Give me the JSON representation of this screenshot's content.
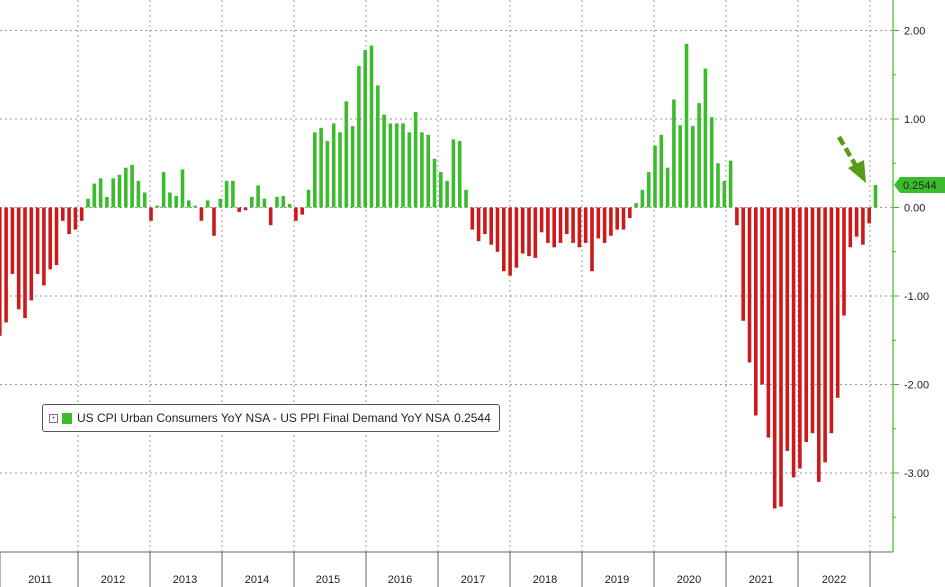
{
  "chart_data": {
    "type": "bar",
    "legend": {
      "label": "US CPI Urban Consumers YoY NSA - US PPI Final Demand YoY NSA",
      "value": "0.2544",
      "placement": "bottom-left"
    },
    "y_ticks": [
      "2.00",
      "1.00",
      "0.00",
      "-1.00",
      "-2.00",
      "-3.00"
    ],
    "y_tick_values": [
      2,
      1,
      0,
      -1,
      -2,
      -3
    ],
    "ylim": [
      -3.85,
      2.35
    ],
    "x_tick_labels": [
      "2011",
      "2012",
      "2013",
      "2014",
      "2015",
      "2016",
      "2017",
      "2018",
      "2019",
      "2020",
      "2021",
      "2022"
    ],
    "last_value_label": "0.2544",
    "grid": true,
    "colors": {
      "positive": "#3dbb2e",
      "negative": "#cc1a1a",
      "axis": "#3dbb2e",
      "arrow": "#5a9a1a"
    },
    "annotation": "arrow pointing to latest bar",
    "values": [
      -1.45,
      -1.3,
      -0.75,
      -1.15,
      -1.25,
      -1.05,
      -0.75,
      -0.88,
      -0.7,
      -0.65,
      -0.15,
      -0.3,
      -0.25,
      -0.15,
      0.1,
      0.27,
      0.33,
      0.12,
      0.33,
      0.37,
      0.45,
      0.48,
      0.3,
      0.17,
      -0.15,
      0.02,
      0.4,
      0.17,
      0.13,
      0.43,
      0.08,
      0.02,
      -0.15,
      0.08,
      -0.32,
      0.1,
      0.3,
      0.3,
      -0.05,
      -0.03,
      0.12,
      0.25,
      0.1,
      -0.2,
      0.12,
      0.13,
      0.04,
      -0.15,
      -0.08,
      0.2,
      0.85,
      0.9,
      0.75,
      0.95,
      0.85,
      1.2,
      0.92,
      1.6,
      1.78,
      1.83,
      1.38,
      1.05,
      0.95,
      0.95,
      0.95,
      0.85,
      1.08,
      0.85,
      0.82,
      0.55,
      0.4,
      0.3,
      0.77,
      0.75,
      0.2,
      -0.25,
      -0.38,
      -0.3,
      -0.42,
      -0.5,
      -0.72,
      -0.77,
      -0.68,
      -0.52,
      -0.55,
      -0.57,
      -0.28,
      -0.4,
      -0.45,
      -0.4,
      -0.3,
      -0.4,
      -0.45,
      -0.4,
      -0.72,
      -0.35,
      -0.4,
      -0.32,
      -0.25,
      -0.25,
      -0.12,
      0.05,
      0.2,
      0.4,
      0.7,
      0.82,
      0.45,
      1.22,
      0.93,
      1.85,
      0.92,
      1.18,
      1.57,
      1.02,
      0.5,
      0.3,
      0.53,
      -0.2,
      -1.28,
      -1.75,
      -2.35,
      -2.0,
      -2.6,
      -3.4,
      -3.38,
      -2.75,
      -3.05,
      -2.95,
      -2.65,
      -2.55,
      -3.1,
      -2.88,
      -2.55,
      -2.15,
      -1.22,
      -0.45,
      -0.33,
      -0.42,
      -0.18,
      0.2544
    ]
  }
}
